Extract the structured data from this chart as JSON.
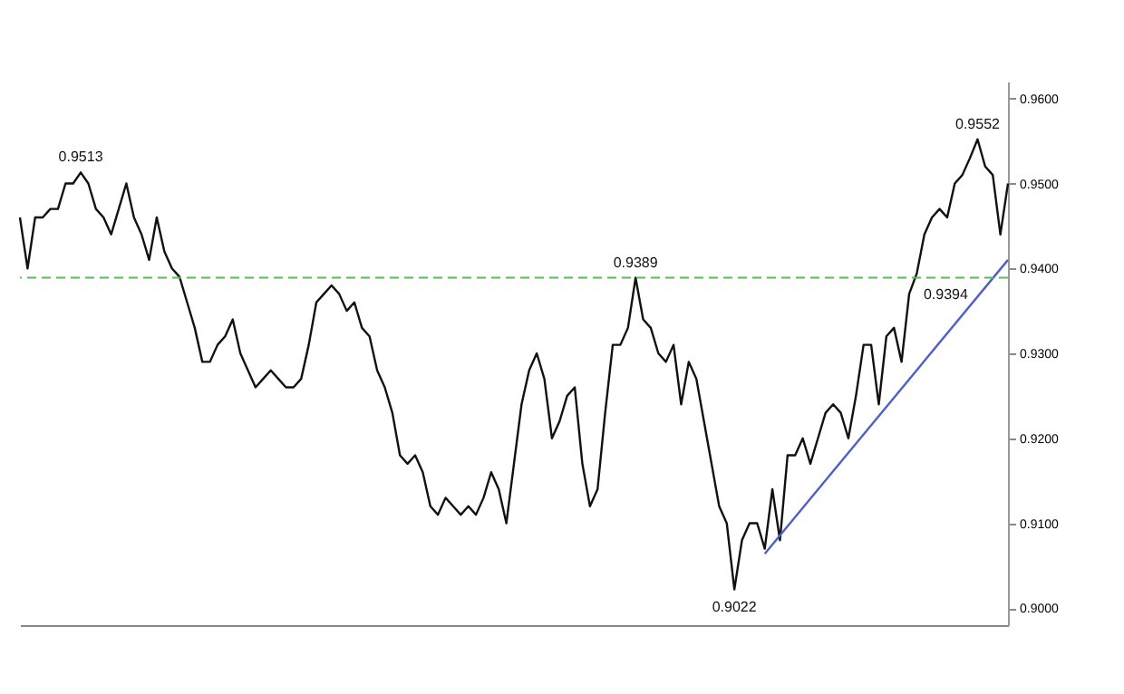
{
  "chart_data": {
    "type": "line",
    "categories": [
      null,
      null,
      null,
      null,
      null,
      null,
      null,
      null,
      null,
      null,
      null,
      null,
      null,
      null,
      null,
      null,
      null,
      null,
      null,
      null,
      null,
      null,
      null,
      null,
      null,
      null,
      null,
      null,
      null,
      null,
      null,
      null,
      null,
      null,
      null,
      null,
      null,
      null,
      null,
      null,
      null,
      null,
      null,
      null,
      null,
      null,
      null,
      null,
      null,
      null,
      null,
      null,
      null,
      null,
      null,
      null,
      null,
      null,
      null,
      null,
      null,
      null,
      null,
      null,
      null,
      null,
      null,
      null,
      null,
      null,
      null,
      null,
      null,
      null,
      null,
      null,
      null,
      null,
      null,
      null,
      null,
      null,
      null,
      null,
      null,
      null,
      null,
      null,
      null,
      null,
      null,
      null,
      null,
      null,
      null,
      null,
      null,
      null,
      null,
      null,
      null,
      null,
      null,
      null,
      null,
      null,
      null,
      null,
      null,
      null,
      null,
      null,
      null,
      null,
      null,
      null,
      null,
      null,
      null,
      null,
      null,
      null,
      null,
      null,
      null,
      null,
      null,
      null,
      null,
      null,
      null
    ],
    "series": [
      {
        "color": "#111111",
        "values": [
          0.946,
          0.94,
          0.946,
          0.946,
          0.947,
          0.947,
          0.95,
          0.95,
          0.9513,
          0.95,
          0.947,
          0.946,
          0.944,
          0.947,
          0.95,
          0.946,
          0.944,
          0.941,
          0.946,
          0.942,
          0.94,
          0.939,
          0.936,
          0.933,
          0.929,
          0.929,
          0.931,
          0.932,
          0.934,
          0.93,
          0.928,
          0.926,
          0.927,
          0.928,
          0.927,
          0.926,
          0.926,
          0.927,
          0.931,
          0.936,
          0.937,
          0.938,
          0.937,
          0.935,
          0.936,
          0.933,
          0.932,
          0.928,
          0.926,
          0.923,
          0.918,
          0.917,
          0.918,
          0.916,
          0.912,
          0.911,
          0.913,
          0.912,
          0.911,
          0.912,
          0.911,
          0.913,
          0.916,
          0.914,
          0.91,
          0.917,
          0.924,
          0.928,
          0.93,
          0.927,
          0.92,
          0.922,
          0.925,
          0.926,
          0.917,
          0.912,
          0.914,
          0.923,
          0.931,
          0.931,
          0.933,
          0.9389,
          0.934,
          0.933,
          0.93,
          0.929,
          0.931,
          0.924,
          0.929,
          0.927,
          0.922,
          0.917,
          0.912,
          0.91,
          0.9022,
          0.908,
          0.91,
          0.91,
          0.907,
          0.914,
          0.908,
          0.918,
          0.918,
          0.92,
          0.917,
          0.92,
          0.923,
          0.924,
          0.923,
          0.92,
          0.925,
          0.931,
          0.931,
          0.924,
          0.932,
          0.933,
          0.929,
          0.937,
          0.9394,
          0.944,
          0.946,
          0.947,
          0.946,
          0.95,
          0.951,
          0.953,
          0.9552,
          0.952,
          0.951,
          0.944,
          0.95
        ]
      },
      {
        "type": "line",
        "color": "#4f5fc8",
        "values": [
          null,
          null,
          null,
          null,
          null,
          null,
          null,
          null,
          null,
          null,
          null,
          null,
          null,
          null,
          null,
          null,
          null,
          null,
          null,
          null,
          null,
          null,
          null,
          null,
          null,
          null,
          null,
          null,
          null,
          null,
          null,
          null,
          null,
          null,
          null,
          null,
          null,
          null,
          null,
          null,
          null,
          null,
          null,
          null,
          null,
          null,
          null,
          null,
          null,
          null,
          null,
          null,
          null,
          null,
          null,
          null,
          null,
          null,
          null,
          null,
          null,
          null,
          null,
          null,
          null,
          null,
          null,
          null,
          null,
          null,
          null,
          null,
          null,
          null,
          null,
          null,
          null,
          null,
          null,
          null,
          null,
          null,
          null,
          null,
          null,
          null,
          null,
          null,
          null,
          null,
          null,
          null,
          null,
          null,
          null,
          null,
          null,
          null,
          0.9064,
          null,
          null,
          null,
          null,
          null,
          null,
          null,
          null,
          null,
          null,
          null,
          null,
          null,
          null,
          null,
          null,
          null,
          null,
          null,
          null,
          null,
          null,
          null,
          null,
          null,
          null,
          null,
          null,
          null,
          null,
          null,
          0.941
        ]
      }
    ],
    "ref_lines": [
      {
        "axis": "y",
        "value": 0.9389,
        "color": "#5cb85c",
        "line_style": "dashed"
      }
    ],
    "annotations": [
      {
        "text": "0.9513",
        "y": 0.9513
      },
      {
        "text": "0.9389",
        "y": 0.9389
      },
      {
        "text": "0.9022",
        "y": 0.9022
      },
      {
        "text": "0.9394",
        "y": 0.9394
      },
      {
        "text": "0.9552",
        "y": 0.9552
      }
    ],
    "ylim": [
      0.898,
      0.962
    ],
    "yticks": [
      {
        "value": 0.9,
        "label": "0.9000"
      },
      {
        "value": 0.91,
        "label": "0.9100"
      },
      {
        "value": 0.92,
        "label": "0.9200"
      },
      {
        "value": 0.93,
        "label": "0.9300"
      },
      {
        "value": 0.94,
        "label": "0.9400"
      },
      {
        "value": 0.95,
        "label": "0.9500"
      },
      {
        "value": 0.96,
        "label": "0.9600"
      }
    ],
    "tick_labels": "y",
    "grid": false
  }
}
